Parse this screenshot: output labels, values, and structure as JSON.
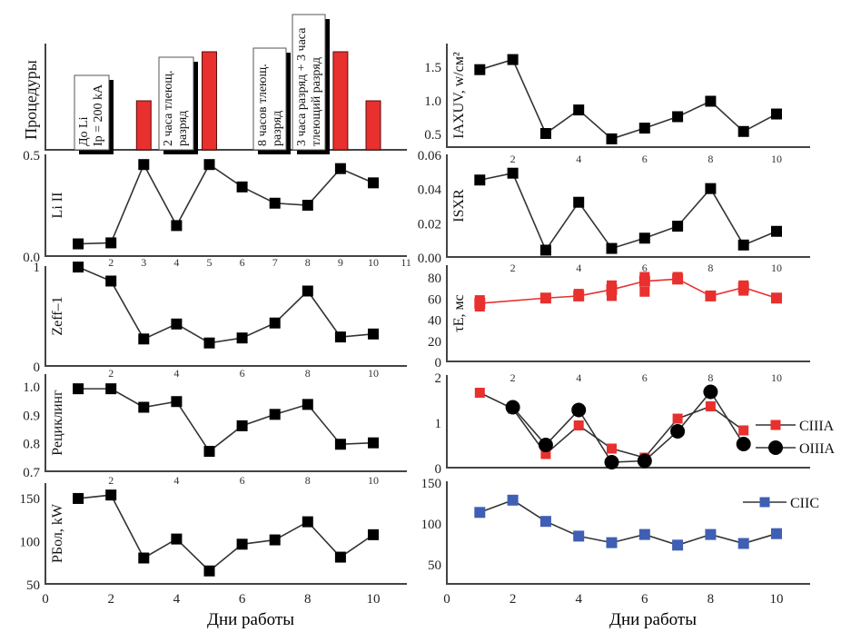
{
  "chart_data": [
    {
      "id": "procedures",
      "type": "bar",
      "ylabel": "Процедуры",
      "x": [
        3,
        5,
        9,
        10
      ],
      "values": [
        1,
        2,
        2,
        1
      ],
      "annotations": [
        {
          "day": 1,
          "lines": [
            "До Li",
            "Ip = 200 kA"
          ]
        },
        {
          "day": 4,
          "lines": [
            "2 часа тлеющ.",
            "разряд"
          ]
        },
        {
          "day": 7,
          "lines": [
            "8 часов тлеющ.",
            "разряд"
          ]
        },
        {
          "day": 8,
          "lines": [
            "3 часа разряд + 3 часа",
            "тлеющий разряд"
          ]
        }
      ],
      "color": "#e8302e"
    },
    {
      "id": "li2",
      "type": "line",
      "ylabel": "Li II",
      "ylim": [
        0,
        0.5
      ],
      "yticks": [
        "0.0",
        "0.5"
      ],
      "ytick_values": [
        0,
        0.5
      ],
      "xticks": [
        "2",
        "3",
        "4",
        "5",
        "6",
        "7",
        "8",
        "9",
        "10",
        "11"
      ],
      "xtick_values": [
        2,
        3,
        4,
        5,
        6,
        7,
        8,
        9,
        10,
        11
      ],
      "x": [
        1,
        2,
        3,
        4,
        5,
        6,
        7,
        8,
        9,
        10
      ],
      "series": [
        {
          "name": "Li II",
          "values": [
            0.06,
            0.065,
            0.45,
            0.15,
            0.45,
            0.34,
            0.26,
            0.25,
            0.43,
            0.36
          ],
          "color": "#000000",
          "marker": "square"
        }
      ]
    },
    {
      "id": "zeff",
      "type": "line",
      "ylabel": "Zeff–1",
      "ylim": [
        0,
        1
      ],
      "yticks": [
        "0",
        "1"
      ],
      "ytick_values": [
        0,
        1
      ],
      "xticks": [
        "2",
        "4",
        "6",
        "8",
        "10"
      ],
      "xtick_values": [
        2,
        4,
        6,
        8,
        10
      ],
      "x": [
        1,
        2,
        3,
        4,
        5,
        6,
        7,
        8,
        9,
        10
      ],
      "series": [
        {
          "name": "Zeff-1",
          "values": [
            0.99,
            0.85,
            0.27,
            0.42,
            0.23,
            0.28,
            0.43,
            0.75,
            0.29,
            0.32
          ],
          "color": "#000000",
          "marker": "square"
        }
      ]
    },
    {
      "id": "recycling",
      "type": "line",
      "ylabel": "Рециклинг",
      "ylim": [
        0.7,
        1.0
      ],
      "yticks": [
        "0.7",
        "0.8",
        "0.9",
        "1.0"
      ],
      "ytick_values": [
        0.7,
        0.8,
        0.9,
        1.0
      ],
      "xticks": [
        "2",
        "4",
        "6",
        "8",
        "10"
      ],
      "xtick_values": [
        2,
        4,
        6,
        8,
        10
      ],
      "x": [
        1,
        2,
        3,
        4,
        5,
        6,
        7,
        8,
        9,
        10
      ],
      "series": [
        {
          "name": "Рециклинг",
          "values": [
            0.99,
            0.99,
            0.925,
            0.945,
            0.77,
            0.86,
            0.9,
            0.935,
            0.795,
            0.8
          ],
          "color": "#000000",
          "marker": "square"
        }
      ]
    },
    {
      "id": "pbol",
      "type": "line",
      "ylabel": "PБол, kW",
      "xlabel": "Дни работы",
      "ylim": [
        50,
        150
      ],
      "yticks": [
        "50",
        "100",
        "150"
      ],
      "ytick_values": [
        50,
        100,
        150
      ],
      "xticks": [
        "0",
        "2",
        "4",
        "6",
        "8",
        "10"
      ],
      "xtick_values": [
        0,
        2,
        4,
        6,
        8,
        10
      ],
      "x": [
        1,
        2,
        3,
        4,
        5,
        6,
        7,
        8,
        9,
        10
      ],
      "series": [
        {
          "name": "PБол",
          "values": [
            149,
            153,
            80,
            102,
            65,
            96,
            101,
            122,
            81,
            107
          ],
          "color": "#000000",
          "marker": "square"
        }
      ]
    },
    {
      "id": "axuv",
      "type": "line",
      "ylabel": "IAXUV, w/см²",
      "ylim": [
        0.5,
        1.5
      ],
      "yticks": [
        "0.5",
        "1.0",
        "1.5"
      ],
      "ytick_values": [
        0.5,
        1.0,
        1.5
      ],
      "x": [
        1,
        2,
        3,
        4,
        5,
        6,
        7,
        8,
        9,
        10
      ],
      "series": [
        {
          "name": "IAXUV",
          "values": [
            1.45,
            1.6,
            0.5,
            0.85,
            0.42,
            0.58,
            0.75,
            0.98,
            0.53,
            0.79
          ],
          "color": "#000000",
          "marker": "square"
        }
      ]
    },
    {
      "id": "sxr",
      "type": "line",
      "ylabel": "ISXR",
      "ylim": [
        0,
        0.06
      ],
      "yticks": [
        "0.00",
        "0.02",
        "0.04",
        "0.06"
      ],
      "ytick_values": [
        0,
        0.02,
        0.04,
        0.06
      ],
      "xticks": [
        "2",
        "4",
        "6",
        "8",
        "10"
      ],
      "xtick_values": [
        2,
        4,
        6,
        8,
        10
      ],
      "x": [
        1,
        2,
        3,
        4,
        5,
        6,
        7,
        8,
        9,
        10
      ],
      "series": [
        {
          "name": "ISXR",
          "values": [
            0.045,
            0.049,
            0.004,
            0.032,
            0.005,
            0.011,
            0.018,
            0.04,
            0.007,
            0.015
          ],
          "color": "#000000",
          "marker": "square"
        }
      ]
    },
    {
      "id": "taue",
      "type": "line",
      "ylabel": "τE, мс",
      "ylim": [
        0,
        80
      ],
      "yticks": [
        "0",
        "20",
        "40",
        "60",
        "80"
      ],
      "ytick_values": [
        0,
        20,
        40,
        60,
        80
      ],
      "xticks": [
        "2",
        "4",
        "6",
        "8",
        "10"
      ],
      "xtick_values": [
        2,
        4,
        6,
        8,
        10
      ],
      "x": [
        1,
        3,
        4,
        5,
        6,
        7,
        8,
        9,
        10
      ],
      "series": [
        {
          "name": "τE",
          "values": [
            55,
            60,
            62,
            68,
            76,
            78,
            62,
            70,
            60
          ],
          "color": "#e8302e",
          "marker": "square"
        }
      ],
      "extra_points": [
        {
          "x": 1,
          "y": 52
        },
        {
          "x": 1,
          "y": 58
        },
        {
          "x": 4,
          "y": 64
        },
        {
          "x": 5,
          "y": 62
        },
        {
          "x": 5,
          "y": 72
        },
        {
          "x": 6,
          "y": 80
        },
        {
          "x": 6,
          "y": 66
        },
        {
          "x": 7,
          "y": 80
        },
        {
          "x": 9,
          "y": 67
        },
        {
          "x": 9,
          "y": 72
        }
      ]
    },
    {
      "id": "carbon",
      "type": "line",
      "ylim": [
        0,
        2
      ],
      "yticks": [
        "0",
        "1",
        "2"
      ],
      "ytick_values": [
        0,
        1,
        2
      ],
      "xticks": [
        "2",
        "4",
        "6",
        "8",
        "10"
      ],
      "xtick_values": [
        2,
        4,
        6,
        8,
        10
      ],
      "legend": "right",
      "x": [
        1,
        2,
        3,
        4,
        5,
        6,
        7,
        8,
        9
      ],
      "series": [
        {
          "name": "CIIIA",
          "x": [
            1,
            2,
            3,
            4,
            5,
            6,
            7,
            8,
            9
          ],
          "values": [
            1.65,
            1.3,
            0.3,
            0.93,
            0.42,
            0.22,
            1.08,
            1.35,
            0.82
          ],
          "color": "#e8302e",
          "marker": "square"
        },
        {
          "name": "OIIIA",
          "x": [
            2,
            3,
            4,
            5,
            6,
            7,
            8,
            9
          ],
          "values": [
            1.33,
            0.5,
            1.27,
            0.12,
            0.15,
            0.8,
            1.67,
            0.52
          ],
          "color": "#000000",
          "marker": "circle"
        }
      ]
    },
    {
      "id": "ciic",
      "type": "line",
      "xlabel": "Дни работы",
      "ylim": [
        50,
        150
      ],
      "yticks": [
        "50",
        "100",
        "150"
      ],
      "ytick_values": [
        50,
        100,
        150
      ],
      "xticks": [
        "0",
        "2",
        "4",
        "6",
        "8",
        "10"
      ],
      "xtick_values": [
        0,
        2,
        4,
        6,
        8,
        10
      ],
      "legend": "top-right",
      "x": [
        1,
        2,
        3,
        4,
        5,
        6,
        7,
        8,
        9,
        10
      ],
      "series": [
        {
          "name": "CIIC",
          "values": [
            113,
            128,
            102,
            84,
            76,
            86,
            73,
            86,
            75,
            87
          ],
          "color": "#3f5fb5",
          "marker": "square"
        }
      ]
    }
  ],
  "labels": {
    "x_axis_left": "Дни работы",
    "x_axis_right": "Дни работы"
  }
}
